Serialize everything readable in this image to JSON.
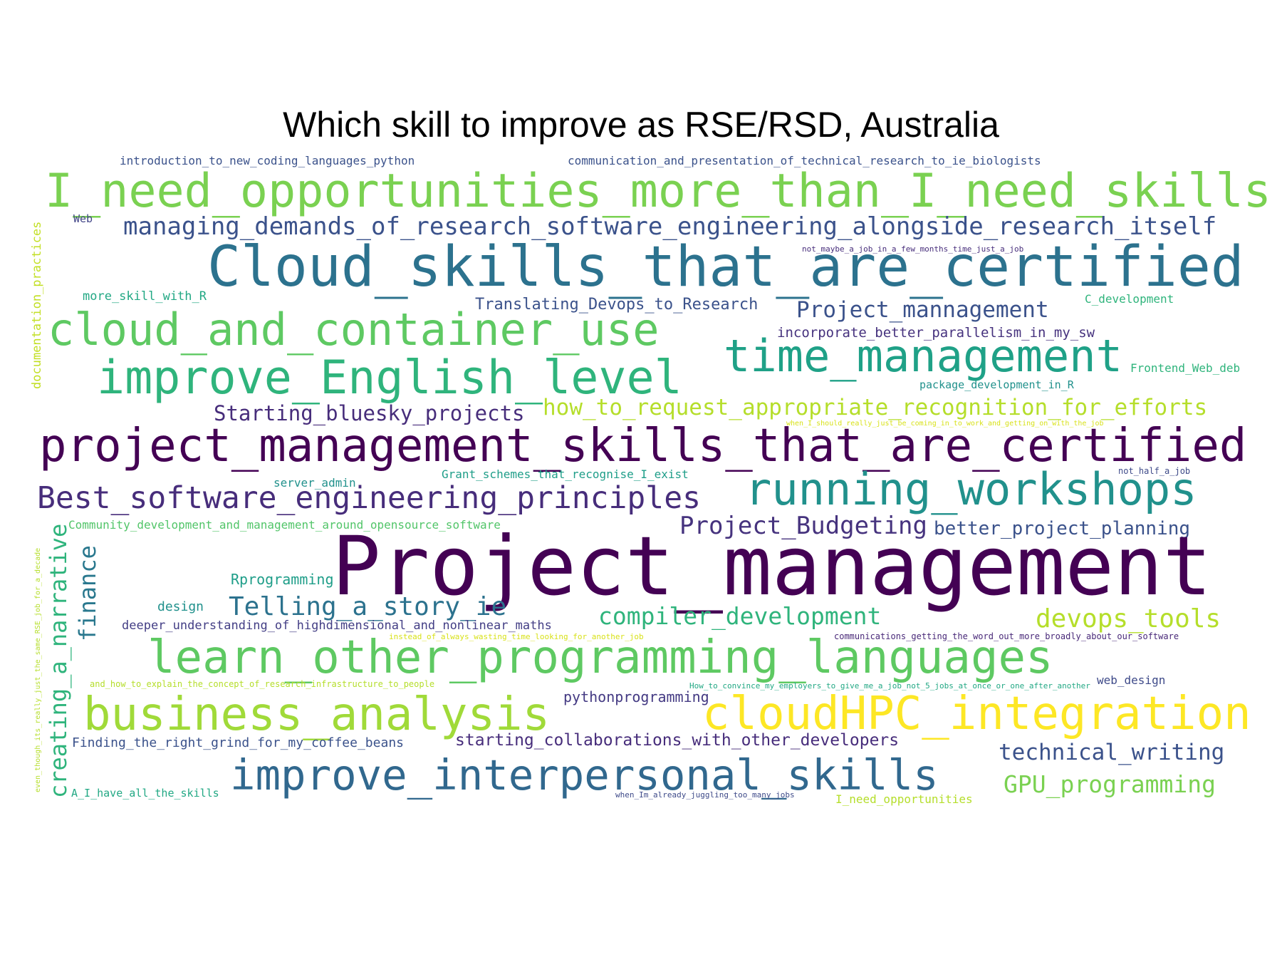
{
  "title": "Which skill to improve as RSE/RSD, Australia",
  "colors": {
    "palette": "viridis",
    "background": "#ffffff",
    "title": "#000000"
  },
  "words": [
    {
      "text": "introduction_to_new_coding_languages_python",
      "color": "#3b528b"
    },
    {
      "text": "communication_and_presentation_of_technical_research_to_ie_biologists",
      "color": "#3b528b"
    },
    {
      "text": "I_need_opportunities_more_than_I_need_skills",
      "color": "#7ad151"
    },
    {
      "text": "Web",
      "color": "#414487"
    },
    {
      "text": "managing_demands_of_research_software_engineering_alongside_research_itself",
      "color": "#3b528b"
    },
    {
      "text": "not_maybe_a_job_in_a_few_months_time_just_a_job",
      "color": "#472d7b"
    },
    {
      "text": "Cloud_skills_that_are_certified",
      "color": "#2c728e"
    },
    {
      "text": "documentation_practices",
      "color": "#c2df23"
    },
    {
      "text": "more_skill_with_R",
      "color": "#22a884"
    },
    {
      "text": "C_development",
      "color": "#2fb47c"
    },
    {
      "text": "Translating_Devops_to_Research",
      "color": "#3b528b"
    },
    {
      "text": "Project_mannagement",
      "color": "#3b528b"
    },
    {
      "text": "cloud_and_container_use",
      "color": "#5ec962"
    },
    {
      "text": "incorporate_better_parallelism_in_my_sw",
      "color": "#46327e"
    },
    {
      "text": "time_management",
      "color": "#1fa187"
    },
    {
      "text": "Frontend_Web_deb",
      "color": "#2fb47c"
    },
    {
      "text": "improve_English_level",
      "color": "#2fb47c"
    },
    {
      "text": "package_development_in_R",
      "color": "#21918c"
    },
    {
      "text": "Starting_bluesky_projects",
      "color": "#472d7b"
    },
    {
      "text": "how_to_request_appropriate_recognition_for_efforts",
      "color": "#b5de2b"
    },
    {
      "text": "when_I_should_really_just_be_coming_in_to_work_and_getting_on_with_the_job",
      "color": "#d8e219"
    },
    {
      "text": "project_management_skills_that_are_certified",
      "color": "#440154"
    },
    {
      "text": "server_admin",
      "color": "#21918c"
    },
    {
      "text": "Grant_schemes_that_recognise_I_exist",
      "color": "#1f9e89"
    },
    {
      "text": "not_half_a_job",
      "color": "#3e4a89"
    },
    {
      "text": "Best_software_engineering_principles",
      "color": "#472d7b"
    },
    {
      "text": "running_workshops",
      "color": "#21918c"
    },
    {
      "text": "creating_a_narrative",
      "color": "#2fb47c"
    },
    {
      "text": "Community_development_and_management_around_opensource_software",
      "color": "#52c569"
    },
    {
      "text": "Project_Budgeting",
      "color": "#46337e"
    },
    {
      "text": "better_project_planning",
      "color": "#3b528b"
    },
    {
      "text": "even_though_its_really_just_the_same_RSE_job_for_a_decade",
      "color": "#b5de2b"
    },
    {
      "text": "finance",
      "color": "#2a788e"
    },
    {
      "text": "Project_management",
      "color": "#440154"
    },
    {
      "text": "Rprogramming",
      "color": "#1f9e89"
    },
    {
      "text": "design",
      "color": "#21918c"
    },
    {
      "text": "Telling_a_story_ie",
      "color": "#2c728e"
    },
    {
      "text": "compiler_development",
      "color": "#2fb47c"
    },
    {
      "text": "devops_tools",
      "color": "#b5de2b"
    },
    {
      "text": "deeper_understanding_of_highdimensional_and_nonlinear_maths",
      "color": "#433e85"
    },
    {
      "text": "instead_of_always_wasting_time_looking_for_another_job",
      "color": "#d8e219"
    },
    {
      "text": "communications_getting_the_word_out_more_broadly_about_our_software",
      "color": "#482878"
    },
    {
      "text": "learn_other_programming_languages",
      "color": "#5ec962"
    },
    {
      "text": "and_how_to_explain_the_concept_of_research_infrastructure_to_people",
      "color": "#b5de2b"
    },
    {
      "text": "How_to_convince_my_employers_to_give_me_a_job_not_5_jobs_at_once_or_one_after_another",
      "color": "#22a884"
    },
    {
      "text": "web_design",
      "color": "#3e4a89"
    },
    {
      "text": "pythonprogramming",
      "color": "#443a83"
    },
    {
      "text": "business_analysis",
      "color": "#a0da39"
    },
    {
      "text": "cloudHPC_integration",
      "color": "#fde725"
    },
    {
      "text": "Finding_the_right_grind_for_my_coffee_beans",
      "color": "#3b528b"
    },
    {
      "text": "starting_collaborations_with_other_developers",
      "color": "#472d7b"
    },
    {
      "text": "technical_writing",
      "color": "#3b528b"
    },
    {
      "text": "improve_interpersonal_skills",
      "color": "#31688e"
    },
    {
      "text": "GPU_programming",
      "color": "#7ad151"
    },
    {
      "text": "A_I_have_all_the_skills",
      "color": "#22a884"
    },
    {
      "text": "when_Im_already_juggling_too_many_jobs",
      "color": "#3e4a89"
    },
    {
      "text": "I_need_opportunities",
      "color": "#b5de2b"
    }
  ]
}
